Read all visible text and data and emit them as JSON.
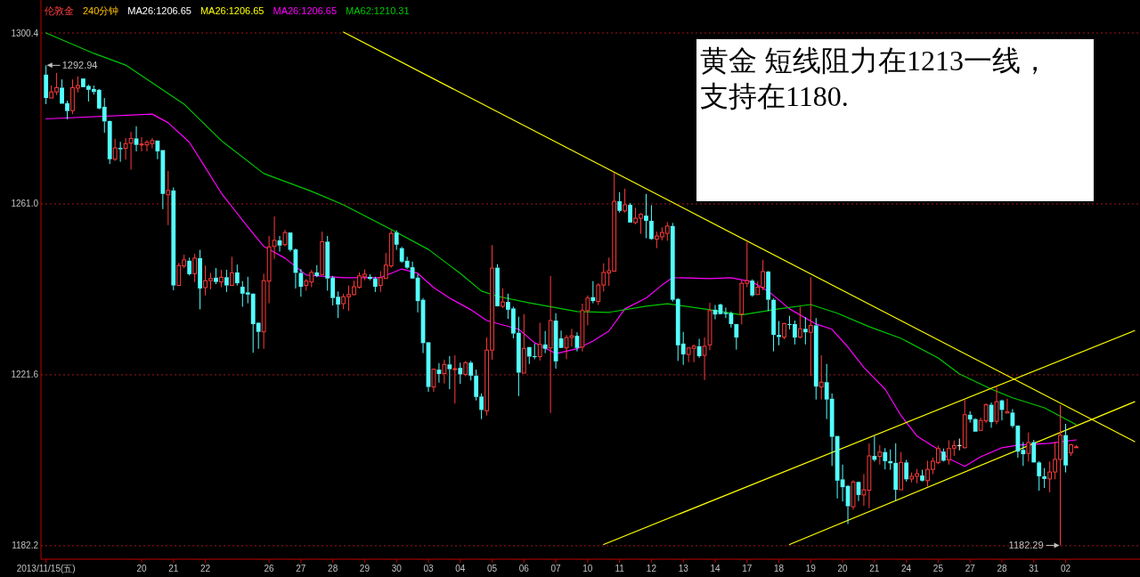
{
  "chart_data": {
    "type": "candlestick",
    "title": "伦敦金",
    "subtitle": "240分钟",
    "categories": [
      "2013/11/15(五)",
      null,
      null,
      null,
      null,
      null,
      null,
      null,
      null,
      null,
      null,
      null,
      null,
      null,
      null,
      null,
      null,
      null,
      "20",
      null,
      null,
      null,
      null,
      null,
      "21",
      null,
      null,
      null,
      null,
      null,
      "22",
      null,
      null,
      null,
      null,
      null,
      null,
      null,
      null,
      null,
      null,
      null,
      "26",
      null,
      null,
      null,
      null,
      null,
      "27",
      null,
      null,
      null,
      null,
      null,
      "28",
      null,
      null,
      null,
      null,
      null,
      "29",
      null,
      null,
      null,
      null,
      null,
      "30",
      null,
      null,
      null,
      null,
      null,
      "03",
      null,
      null,
      null,
      null,
      null,
      "04",
      null,
      null,
      null,
      null,
      null,
      "05",
      null,
      null,
      null,
      null,
      null,
      "06",
      null,
      null,
      null,
      null,
      null,
      "07",
      null,
      null,
      null,
      null,
      null,
      "10",
      null,
      null,
      null,
      null,
      null,
      "11",
      null,
      null,
      null,
      null,
      null,
      "12",
      null,
      null,
      null,
      null,
      null,
      "13",
      null,
      null,
      null,
      null,
      null,
      "14",
      null,
      null,
      null,
      null,
      null,
      "17",
      null,
      null,
      null,
      null,
      null,
      "18",
      null,
      null,
      null,
      null,
      null,
      "19",
      null,
      null,
      null,
      null,
      null,
      "20",
      null,
      null,
      null,
      null,
      null,
      "21",
      null,
      null,
      null,
      null,
      null,
      "24",
      null,
      null,
      null,
      null,
      null,
      "25",
      null,
      null,
      null,
      null,
      null,
      "27",
      null,
      null,
      null,
      null,
      null,
      "28",
      null,
      null,
      null,
      null,
      null,
      "31",
      null,
      null,
      null,
      null,
      null,
      "02",
      null,
      null,
      null,
      null,
      null,
      null,
      null,
      null,
      null,
      null,
      null,
      null,
      null
    ],
    "ohlc": [
      [
        1290.8,
        1292.94,
        1284.0,
        1285.4
      ],
      [
        1285.4,
        1288.3,
        1285.4,
        1286.8
      ],
      [
        1286.8,
        1291.2,
        1286.1,
        1287.8
      ],
      [
        1287.8,
        1289.7,
        1284.1,
        1284.1
      ],
      [
        1284.2,
        1284.8,
        1280.5,
        1282.4
      ],
      [
        1282.5,
        1289.7,
        1281.7,
        1287.8
      ],
      [
        1287.7,
        1290.4,
        1286.7,
        1288.3
      ],
      [
        1289.9,
        1289.9,
        1287.9,
        1287.9
      ],
      [
        1288.2,
        1288.5,
        1284.6,
        1287.3
      ],
      [
        1287.5,
        1288.3,
        1286.2,
        1286.8
      ],
      [
        1287.3,
        1287.5,
        1282.8,
        1283.0
      ],
      [
        1283.4,
        1285.4,
        1277.4,
        1280.0
      ],
      [
        1280.1,
        1280.2,
        1270.2,
        1271.3
      ],
      [
        1271.3,
        1276.0,
        1270.9,
        1273.9
      ],
      [
        1273.9,
        1275.3,
        1270.7,
        1273.6
      ],
      [
        1273.8,
        1276.2,
        1271.2,
        1274.9
      ],
      [
        1275.0,
        1277.6,
        1268.9,
        1276.1
      ],
      [
        1276.1,
        1278.9,
        1273.1,
        1274.6
      ],
      [
        1274.7,
        1276.4,
        1273.1,
        1274.8
      ],
      [
        1274.6,
        1275.7,
        1273.1,
        1275.2
      ],
      [
        1274.9,
        1276.2,
        1273.8,
        1275.6
      ],
      [
        1275.6,
        1275.6,
        1271.3,
        1273.1
      ],
      [
        1273.4,
        1273.4,
        1259.8,
        1263.3
      ],
      [
        1263.1,
        1268.6,
        1256.1,
        1264.1
      ],
      [
        1264.1,
        1264.8,
        1241.1,
        1242.2
      ],
      [
        1242.2,
        1247.4,
        1242.2,
        1246.8
      ],
      [
        1246.7,
        1249.3,
        1246.2,
        1248.1
      ],
      [
        1247.9,
        1248.6,
        1244.5,
        1244.8
      ],
      [
        1244.9,
        1249.5,
        1243.0,
        1248.5
      ],
      [
        1248.5,
        1250.4,
        1236.7,
        1241.5
      ],
      [
        1241.7,
        1246.8,
        1239.9,
        1243.3
      ],
      [
        1243.3,
        1245.1,
        1241.3,
        1243.8
      ],
      [
        1244.0,
        1246.2,
        1242.5,
        1243.0
      ],
      [
        1243.0,
        1245.8,
        1241.8,
        1244.1
      ],
      [
        1244.1,
        1245.8,
        1240.7,
        1242.2
      ],
      [
        1242.2,
        1248.8,
        1242.1,
        1245.1
      ],
      [
        1245.2,
        1247.0,
        1242.2,
        1242.7
      ],
      [
        1241.9,
        1243.2,
        1237.3,
        1240.3
      ],
      [
        1240.6,
        1244.2,
        1238.1,
        1240.1
      ],
      [
        1240.3,
        1240.4,
        1226.7,
        1233.3
      ],
      [
        1233.6,
        1233.7,
        1227.6,
        1231.5
      ],
      [
        1231.5,
        1244.9,
        1227.6,
        1243.3
      ],
      [
        1243.2,
        1253.6,
        1238.1,
        1251.1
      ],
      [
        1251.2,
        1258.1,
        1248.3,
        1252.6
      ],
      [
        1252.6,
        1253.6,
        1250.0,
        1251.4
      ],
      [
        1251.6,
        1255.0,
        1251.2,
        1254.4
      ],
      [
        1254.4,
        1254.4,
        1250.0,
        1250.4
      ],
      [
        1250.5,
        1250.7,
        1241.5,
        1245.1
      ],
      [
        1245.1,
        1246.0,
        1239.6,
        1241.9
      ],
      [
        1242.2,
        1243.7,
        1241.0,
        1243.2
      ],
      [
        1243.0,
        1245.8,
        1241.8,
        1245.2
      ],
      [
        1245.2,
        1246.9,
        1244.1,
        1244.4
      ],
      [
        1244.7,
        1254.6,
        1244.7,
        1252.3
      ],
      [
        1252.3,
        1253.6,
        1241.0,
        1243.8
      ],
      [
        1244.0,
        1244.4,
        1237.6,
        1239.3
      ],
      [
        1239.6,
        1240.8,
        1234.7,
        1237.8
      ],
      [
        1238.0,
        1240.3,
        1236.7,
        1239.6
      ],
      [
        1239.6,
        1242.2,
        1236.3,
        1240.1
      ],
      [
        1240.1,
        1243.3,
        1239.9,
        1241.9
      ],
      [
        1241.8,
        1245.2,
        1241.5,
        1244.4
      ],
      [
        1244.2,
        1245.9,
        1243.4,
        1244.8
      ],
      [
        1244.2,
        1244.8,
        1243.4,
        1243.7
      ],
      [
        1243.8,
        1244.2,
        1240.7,
        1241.9
      ],
      [
        1242.2,
        1245.5,
        1240.7,
        1244.0
      ],
      [
        1243.8,
        1249.7,
        1243.8,
        1246.9
      ],
      [
        1246.7,
        1254.9,
        1246.3,
        1254.2
      ],
      [
        1254.4,
        1254.9,
        1250.4,
        1251.6
      ],
      [
        1250.8,
        1251.1,
        1247.4,
        1247.7
      ],
      [
        1247.9,
        1248.8,
        1246.0,
        1246.3
      ],
      [
        1246.4,
        1247.7,
        1243.7,
        1243.8
      ],
      [
        1244.0,
        1244.8,
        1236.0,
        1238.6
      ],
      [
        1238.9,
        1239.3,
        1226.6,
        1228.9
      ],
      [
        1229.1,
        1229.1,
        1217.7,
        1218.8
      ],
      [
        1218.8,
        1223.0,
        1217.7,
        1222.9
      ],
      [
        1222.8,
        1224.3,
        1219.8,
        1221.8
      ],
      [
        1221.9,
        1225.1,
        1219.6,
        1224.0
      ],
      [
        1224.0,
        1225.9,
        1218.3,
        1222.9
      ],
      [
        1222.9,
        1226.1,
        1215.0,
        1223.0
      ],
      [
        1223.2,
        1224.4,
        1219.5,
        1221.7
      ],
      [
        1221.7,
        1224.8,
        1221.3,
        1224.4
      ],
      [
        1224.4,
        1224.8,
        1220.3,
        1221.4
      ],
      [
        1221.4,
        1222.8,
        1215.7,
        1216.5
      ],
      [
        1216.6,
        1217.3,
        1211.4,
        1213.5
      ],
      [
        1213.3,
        1230.2,
        1212.2,
        1227.3
      ],
      [
        1227.3,
        1251.5,
        1225.1,
        1246.2
      ],
      [
        1246.3,
        1247.1,
        1237.4,
        1237.4
      ],
      [
        1237.4,
        1241.5,
        1237.0,
        1238.4
      ],
      [
        1238.4,
        1240.3,
        1234.5,
        1236.6
      ],
      [
        1236.9,
        1237.3,
        1230.0,
        1231.1
      ],
      [
        1231.3,
        1235.0,
        1216.7,
        1222.1
      ],
      [
        1222.0,
        1235.6,
        1222.0,
        1227.7
      ],
      [
        1228.0,
        1228.0,
        1224.1,
        1225.8
      ],
      [
        1225.9,
        1228.8,
        1225.2,
        1225.8
      ],
      [
        1225.8,
        1233.6,
        1224.9,
        1228.6
      ],
      [
        1228.6,
        1231.7,
        1226.6,
        1227.6
      ],
      [
        1227.8,
        1244.4,
        1212.8,
        1234.1
      ],
      [
        1234.1,
        1235.8,
        1223.0,
        1224.7
      ],
      [
        1230.0,
        1231.8,
        1227.8,
        1227.8
      ],
      [
        1227.8,
        1230.8,
        1225.2,
        1230.2
      ],
      [
        1230.2,
        1232.2,
        1228.1,
        1230.6
      ],
      [
        1230.6,
        1231.4,
        1227.0,
        1227.8
      ],
      [
        1228.0,
        1238.0,
        1227.0,
        1236.4
      ],
      [
        1236.4,
        1239.9,
        1233.0,
        1239.3
      ],
      [
        1239.5,
        1243.2,
        1238.1,
        1238.6
      ],
      [
        1238.5,
        1242.7,
        1237.7,
        1242.3
      ],
      [
        1242.3,
        1247.3,
        1240.8,
        1245.2
      ],
      [
        1245.1,
        1248.6,
        1242.1,
        1245.6
      ],
      [
        1245.5,
        1268.2,
        1245.5,
        1261.6
      ],
      [
        1261.6,
        1263.7,
        1259.0,
        1259.4
      ],
      [
        1259.4,
        1264.5,
        1259.0,
        1260.8
      ],
      [
        1260.8,
        1261.2,
        1256.7,
        1256.7
      ],
      [
        1256.7,
        1260.1,
        1256.3,
        1257.7
      ],
      [
        1257.7,
        1258.9,
        1254.1,
        1258.6
      ],
      [
        1258.3,
        1263.3,
        1253.1,
        1257.1
      ],
      [
        1257.1,
        1260.7,
        1252.7,
        1252.9
      ],
      [
        1252.9,
        1254.6,
        1250.8,
        1253.6
      ],
      [
        1253.4,
        1255.6,
        1252.6,
        1254.4
      ],
      [
        1254.2,
        1256.8,
        1252.5,
        1255.9
      ],
      [
        1255.9,
        1256.6,
        1238.5,
        1238.9
      ],
      [
        1239.1,
        1239.3,
        1224.8,
        1228.4
      ],
      [
        1228.8,
        1231.5,
        1223.9,
        1226.3
      ],
      [
        1226.3,
        1228.0,
        1224.5,
        1227.8
      ],
      [
        1227.7,
        1228.6,
        1224.5,
        1228.2
      ],
      [
        1228.2,
        1229.9,
        1225.5,
        1225.9
      ],
      [
        1226.1,
        1230.2,
        1220.4,
        1228.2
      ],
      [
        1228.5,
        1238.2,
        1227.3,
        1236.4
      ],
      [
        1236.6,
        1237.7,
        1234.4,
        1235.5
      ],
      [
        1237.8,
        1238.0,
        1235.5,
        1235.6
      ],
      [
        1235.9,
        1237.1,
        1234.7,
        1235.6
      ],
      [
        1235.8,
        1236.2,
        1232.5,
        1233.3
      ],
      [
        1233.3,
        1233.3,
        1227.4,
        1230.2
      ],
      [
        1235.6,
        1243.4,
        1233.2,
        1242.7
      ],
      [
        1242.7,
        1252.2,
        1241.8,
        1243.3
      ],
      [
        1243.3,
        1243.6,
        1239.6,
        1239.9
      ],
      [
        1240.1,
        1243.2,
        1240.1,
        1241.8
      ],
      [
        1241.8,
        1248.1,
        1241.1,
        1245.4
      ],
      [
        1245.4,
        1245.5,
        1236.3,
        1238.9
      ],
      [
        1238.9,
        1239.2,
        1227.0,
        1230.8
      ],
      [
        1230.8,
        1234.0,
        1228.4,
        1230.3
      ],
      [
        1230.3,
        1233.6,
        1229.8,
        1233.4
      ],
      [
        1233.3,
        1235.2,
        1232.1,
        1233.1
      ],
      [
        1233.3,
        1234.1,
        1228.6,
        1230.2
      ],
      [
        1230.3,
        1237.3,
        1230.0,
        1232.2
      ],
      [
        1232.2,
        1234.9,
        1228.6,
        1231.4
      ],
      [
        1231.4,
        1244.1,
        1221.3,
        1233.0
      ],
      [
        1233.0,
        1234.7,
        1215.9,
        1218.9
      ],
      [
        1218.8,
        1226.1,
        1215.9,
        1219.9
      ],
      [
        1219.9,
        1224.1,
        1211.4,
        1215.9
      ],
      [
        1216.1,
        1217.3,
        1200.6,
        1207.3
      ],
      [
        1207.5,
        1207.5,
        1193.1,
        1197.2
      ],
      [
        1197.5,
        1200.9,
        1192.4,
        1195.7
      ],
      [
        1196.0,
        1196.2,
        1187.2,
        1191.3
      ],
      [
        1191.2,
        1197.3,
        1190.5,
        1196.9
      ],
      [
        1196.9,
        1197.0,
        1192.5,
        1193.9
      ],
      [
        1193.9,
        1198.7,
        1191.4,
        1195.1
      ],
      [
        1195.0,
        1205.8,
        1190.9,
        1202.9
      ],
      [
        1202.9,
        1207.5,
        1201.6,
        1202.0
      ],
      [
        1202.8,
        1205.4,
        1200.9,
        1203.8
      ],
      [
        1203.8,
        1204.7,
        1199.8,
        1201.7
      ],
      [
        1201.7,
        1204.4,
        1199.7,
        1201.2
      ],
      [
        1201.3,
        1205.8,
        1192.5,
        1195.1
      ],
      [
        1195.1,
        1203.8,
        1195.1,
        1201.4
      ],
      [
        1201.4,
        1202.0,
        1197.0,
        1197.5
      ],
      [
        1197.6,
        1199.1,
        1196.8,
        1198.2
      ],
      [
        1198.2,
        1199.9,
        1196.6,
        1198.8
      ],
      [
        1198.4,
        1199.7,
        1197.0,
        1197.2
      ],
      [
        1197.2,
        1201.8,
        1195.8,
        1199.8
      ],
      [
        1199.8,
        1202.5,
        1198.7,
        1201.7
      ],
      [
        1201.4,
        1205.3,
        1201.0,
        1204.6
      ],
      [
        1203.9,
        1204.6,
        1201.6,
        1201.8
      ],
      [
        1202.0,
        1206.5,
        1200.9,
        1204.6
      ],
      [
        1204.7,
        1206.5,
        1202.9,
        1205.3
      ],
      [
        1205.3,
        1206.9,
        1204.2,
        1205.3
      ],
      [
        1204.8,
        1215.9,
        1204.6,
        1212.4
      ],
      [
        1212.4,
        1213.2,
        1210.6,
        1211.3
      ],
      [
        1211.4,
        1211.6,
        1208.5,
        1208.5
      ],
      [
        1208.8,
        1211.7,
        1208.8,
        1211.1
      ],
      [
        1211.0,
        1215.0,
        1210.5,
        1214.7
      ],
      [
        1214.7,
        1215.2,
        1209.4,
        1210.7
      ],
      [
        1210.9,
        1218.8,
        1210.2,
        1215.4
      ],
      [
        1215.7,
        1215.9,
        1211.1,
        1213.5
      ],
      [
        1212.8,
        1216.1,
        1212.8,
        1213.1
      ],
      [
        1212.9,
        1213.7,
        1209.4,
        1209.8
      ],
      [
        1209.9,
        1209.9,
        1202.5,
        1203.9
      ],
      [
        1204.3,
        1206.1,
        1200.6,
        1203.3
      ],
      [
        1203.5,
        1208.3,
        1201.6,
        1206.0
      ],
      [
        1206.1,
        1206.6,
        1201.4,
        1201.4
      ],
      [
        1201.4,
        1201.7,
        1194.9,
        1198.2
      ],
      [
        1198.2,
        1200.1,
        1195.5,
        1197.6
      ],
      [
        1197.6,
        1201.6,
        1194.5,
        1199.2
      ],
      [
        1199.2,
        1206.2,
        1197.5,
        1202.1
      ],
      [
        1202.1,
        1214.6,
        1182.29,
        1207.7
      ],
      [
        1207.7,
        1210.3,
        1199.1,
        1200.7
      ],
      [
        1203.6,
        1205.7,
        1202.9,
        1205.5
      ],
      [
        1204.9,
        1205.4,
        1204.9,
        1205.0
      ],
      null,
      null,
      null,
      null,
      null,
      null,
      null,
      null,
      null,
      null,
      null
    ],
    "series": [
      {
        "name": "MA26:1206.65",
        "type": "line",
        "color": "#ff00ff",
        "values": [
          1280.6,
          null,
          null,
          null,
          null,
          null,
          null,
          null,
          null,
          null,
          null,
          null,
          null,
          null,
          null,
          null,
          null,
          null,
          null,
          null,
          1281.7,
          null,
          null,
          1279.7,
          null,
          null,
          null,
          1275.2,
          null,
          null,
          1269.4,
          null,
          null,
          1263.5,
          null,
          null,
          null,
          null,
          1255.7,
          null,
          null,
          1251.2,
          null,
          null,
          null,
          1248.5,
          null,
          null,
          null,
          1244.6,
          null,
          null,
          null,
          null,
          null,
          null,
          1244.0,
          null,
          null,
          null,
          null,
          null,
          null,
          1244.0,
          null,
          null,
          null,
          1246.0,
          null,
          null,
          1245.0,
          null,
          null,
          1241.7,
          null,
          null,
          1239.3,
          null,
          null,
          null,
          1236.6,
          null,
          null,
          1234.1,
          null,
          null,
          null,
          null,
          null,
          1232.1,
          null,
          null,
          1229.0,
          null,
          null,
          null,
          1226.5,
          null,
          null,
          null,
          1227.6,
          null,
          null,
          1229.4,
          null,
          null,
          1231.7,
          null,
          null,
          1236.8,
          null,
          null,
          null,
          1239.3,
          null,
          null,
          1242.3,
          null,
          1244.0,
          null,
          null,
          null,
          null,
          null,
          null,
          1243.8,
          null,
          null,
          null,
          1244.0,
          null,
          null,
          null,
          1243.0,
          null,
          null,
          1240.9,
          null,
          null,
          null,
          1236.8,
          null,
          null,
          null,
          null,
          1233.3,
          null,
          null,
          1232.1,
          null,
          null,
          1228.0,
          null,
          null,
          1223.3,
          null,
          null,
          null,
          1218.3,
          null,
          null,
          1212.2,
          null,
          null,
          1207.5,
          null,
          null,
          null,
          1204.4,
          null,
          1202.3,
          null,
          null,
          1200.5,
          null,
          null,
          1202.7,
          null,
          null,
          null,
          1204.8,
          null,
          null,
          1205.4,
          null,
          null,
          null,
          null,
          null,
          1205.8,
          null,
          null,
          null,
          null,
          1206.6,
          null,
          null,
          null,
          null,
          null,
          null,
          null,
          null,
          null,
          null,
          null
        ]
      },
      {
        "name": "MA62:1210.31",
        "type": "line",
        "color": "#00c800",
        "values": [
          1300.4,
          null,
          null,
          null,
          null,
          null,
          null,
          null,
          null,
          1295.7,
          null,
          null,
          null,
          null,
          null,
          1293.0,
          null,
          null,
          null,
          null,
          1288.9,
          null,
          null,
          null,
          null,
          null,
          1284.0,
          null,
          null,
          null,
          null,
          null,
          null,
          1275.6,
          null,
          null,
          null,
          null,
          null,
          null,
          null,
          1268.0,
          null,
          null,
          null,
          null,
          null,
          null,
          null,
          null,
          1263.9,
          null,
          null,
          null,
          null,
          null,
          1260.8,
          null,
          null,
          null,
          null,
          null,
          null,
          null,
          null,
          1255.1,
          null,
          null,
          null,
          null,
          null,
          null,
          1250.5,
          null,
          null,
          null,
          null,
          null,
          1245.0,
          null,
          null,
          null,
          1240.9,
          null,
          null,
          1239.7,
          null,
          null,
          null,
          null,
          null,
          1238.2,
          null,
          null,
          null,
          null,
          null,
          null,
          null,
          null,
          1236.2,
          null,
          null,
          null,
          null,
          null,
          1236.0,
          null,
          null,
          null,
          null,
          null,
          null,
          1237.4,
          null,
          null,
          null,
          1238.0,
          null,
          null,
          null,
          null,
          null,
          null,
          null,
          1236.6,
          null,
          null,
          null,
          null,
          null,
          1235.4,
          null,
          null,
          null,
          null,
          null,
          null,
          1236.8,
          null,
          null,
          null,
          null,
          null,
          1237.8,
          null,
          null,
          null,
          null,
          1235.8,
          null,
          null,
          null,
          null,
          null,
          1232.7,
          null,
          null,
          null,
          null,
          null,
          1230.0,
          null,
          null,
          null,
          null,
          null,
          null,
          1225.5,
          null,
          null,
          null,
          1221.8,
          null,
          null,
          null,
          null,
          null,
          1218.3,
          null,
          null,
          null,
          1216.3,
          null,
          null,
          null,
          null,
          null,
          1214.0,
          null,
          null,
          null,
          null,
          null,
          1210.1,
          null,
          null,
          null,
          null,
          null,
          null,
          null,
          null,
          null,
          null,
          null
        ]
      },
      {
        "type": "line",
        "color": "#ffff00",
        "values": [
          null,
          null,
          null,
          null,
          null,
          null,
          null,
          null,
          null,
          null,
          null,
          null,
          null,
          null,
          null,
          null,
          null,
          null,
          null,
          null,
          null,
          null,
          null,
          null,
          null,
          null,
          null,
          null,
          null,
          null,
          null,
          null,
          null,
          null,
          null,
          null,
          null,
          null,
          null,
          null,
          null,
          null,
          null,
          null,
          null,
          null,
          null,
          null,
          null,
          null,
          null,
          null,
          null,
          null,
          null,
          null,
          1300.6,
          null,
          null,
          null,
          null,
          null,
          null,
          null,
          null,
          null,
          null,
          null,
          null,
          null,
          null,
          null,
          null,
          null,
          null,
          null,
          null,
          null,
          null,
          null,
          null,
          null,
          null,
          null,
          null,
          null,
          null,
          null,
          null,
          null,
          null,
          null,
          null,
          null,
          null,
          null,
          null,
          null,
          null,
          null,
          null,
          null,
          null,
          null,
          null,
          null,
          null,
          null,
          null,
          null,
          null,
          null,
          null,
          null,
          null,
          null,
          null,
          null,
          null,
          null,
          null,
          null,
          null,
          null,
          null,
          null,
          null,
          null,
          null,
          null,
          null,
          null,
          null,
          null,
          null,
          null,
          null,
          null,
          null,
          null,
          null,
          null,
          null,
          null,
          null,
          null,
          null,
          null,
          null,
          null,
          null,
          null,
          null,
          null,
          null,
          null,
          null,
          null,
          null,
          null,
          null,
          null,
          null,
          null,
          null,
          null,
          null,
          null,
          null,
          null,
          null,
          null,
          null,
          null,
          null,
          null,
          null,
          null,
          null,
          null,
          null,
          null,
          null,
          null,
          null,
          null,
          null,
          null,
          null,
          null,
          null,
          null,
          null,
          null,
          null,
          null,
          null,
          null,
          null,
          null,
          null,
          null,
          null,
          null,
          null,
          1206.2
        ]
      },
      {
        "type": "line",
        "color": "#ffff00",
        "values": [
          null,
          null,
          null,
          null,
          null,
          null,
          null,
          null,
          null,
          null,
          null,
          null,
          null,
          null,
          null,
          null,
          null,
          null,
          null,
          null,
          null,
          null,
          null,
          null,
          null,
          null,
          null,
          null,
          null,
          null,
          null,
          null,
          null,
          null,
          null,
          null,
          null,
          null,
          null,
          null,
          null,
          null,
          null,
          null,
          null,
          null,
          null,
          null,
          null,
          null,
          null,
          null,
          null,
          null,
          null,
          null,
          null,
          null,
          null,
          null,
          null,
          null,
          null,
          null,
          null,
          null,
          null,
          null,
          null,
          null,
          null,
          null,
          null,
          null,
          null,
          null,
          null,
          null,
          null,
          null,
          null,
          null,
          null,
          null,
          null,
          null,
          null,
          null,
          null,
          null,
          null,
          null,
          null,
          null,
          null,
          null,
          null,
          null,
          null,
          null,
          null,
          null,
          null,
          null,
          null,
          1182.5,
          null,
          null,
          null,
          null,
          null,
          null,
          null,
          null,
          null,
          null,
          null,
          null,
          null,
          null,
          null,
          null,
          null,
          null,
          null,
          null,
          null,
          null,
          null,
          null,
          null,
          null,
          null,
          null,
          null,
          null,
          null,
          null,
          null,
          null,
          null,
          null,
          null,
          null,
          null,
          null,
          null,
          null,
          null,
          null,
          null,
          null,
          null,
          null,
          null,
          null,
          null,
          null,
          null,
          null,
          null,
          null,
          null,
          null,
          null,
          null,
          null,
          null,
          null,
          null,
          null,
          null,
          null,
          null,
          null,
          null,
          null,
          null,
          null,
          null,
          null,
          null,
          null,
          null,
          null,
          null,
          null,
          null,
          null,
          null,
          null,
          null,
          null,
          null,
          null,
          null,
          null,
          null,
          null,
          null,
          null,
          null,
          null,
          null,
          null,
          1231.8
        ]
      },
      {
        "type": "line",
        "color": "#ffff00",
        "values": [
          null,
          null,
          null,
          null,
          null,
          null,
          null,
          null,
          null,
          null,
          null,
          null,
          null,
          null,
          null,
          null,
          null,
          null,
          null,
          null,
          null,
          null,
          null,
          null,
          null,
          null,
          null,
          null,
          null,
          null,
          null,
          null,
          null,
          null,
          null,
          null,
          null,
          null,
          null,
          null,
          null,
          null,
          null,
          null,
          null,
          null,
          null,
          null,
          null,
          null,
          null,
          null,
          null,
          null,
          null,
          null,
          null,
          null,
          null,
          null,
          null,
          null,
          null,
          null,
          null,
          null,
          null,
          null,
          null,
          null,
          null,
          null,
          null,
          null,
          null,
          null,
          null,
          null,
          null,
          null,
          null,
          null,
          null,
          null,
          null,
          null,
          null,
          null,
          null,
          null,
          null,
          null,
          null,
          null,
          null,
          null,
          null,
          null,
          null,
          null,
          null,
          null,
          null,
          null,
          null,
          null,
          null,
          null,
          null,
          null,
          null,
          null,
          null,
          null,
          null,
          null,
          null,
          null,
          null,
          null,
          null,
          null,
          null,
          null,
          null,
          null,
          null,
          null,
          null,
          null,
          null,
          null,
          null,
          null,
          null,
          null,
          null,
          null,
          null,
          null,
          1182.5,
          null,
          null,
          null,
          null,
          null,
          null,
          null,
          null,
          null,
          null,
          null,
          null,
          null,
          null,
          null,
          null,
          null,
          null,
          null,
          null,
          null,
          null,
          null,
          null,
          null,
          null,
          null,
          null,
          null,
          null,
          null,
          null,
          null,
          null,
          null,
          null,
          null,
          null,
          null,
          null,
          null,
          null,
          null,
          null,
          null,
          null,
          null,
          null,
          null,
          null,
          null,
          null,
          null,
          null,
          null,
          null,
          null,
          null,
          null,
          null,
          null,
          null,
          null,
          null,
          1215.4
        ]
      }
    ],
    "annotations": [
      "MA26:1206.65",
      "MA26:1206.65",
      "黄金 短线阻力在1213一线，支持在1180.",
      "1292.94",
      "1182.29"
    ],
    "ylim": [
      1179.1,
      1308.0
    ],
    "yticks": [
      1300.4,
      {
        "value": 1261.0,
        "label": "1261.0"
      },
      1221.6,
      1182.2
    ],
    "grid": "y",
    "legend": "top left"
  }
}
